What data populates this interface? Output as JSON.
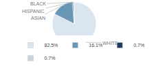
{
  "chart_data": {
    "type": "pie",
    "categories": [
      "WHITE",
      "ASIAN",
      "HISPANIC",
      "BLACK"
    ],
    "values": [
      82.5,
      16.1,
      0.7,
      0.7
    ],
    "value_labels": [
      "82.5%",
      "16.1%",
      "0.7%",
      "0.7%"
    ],
    "colors": [
      "#dae5ef",
      "#6a96b5",
      "#1d3d5e",
      "#c5d5e0"
    ],
    "legend": "bottom"
  }
}
